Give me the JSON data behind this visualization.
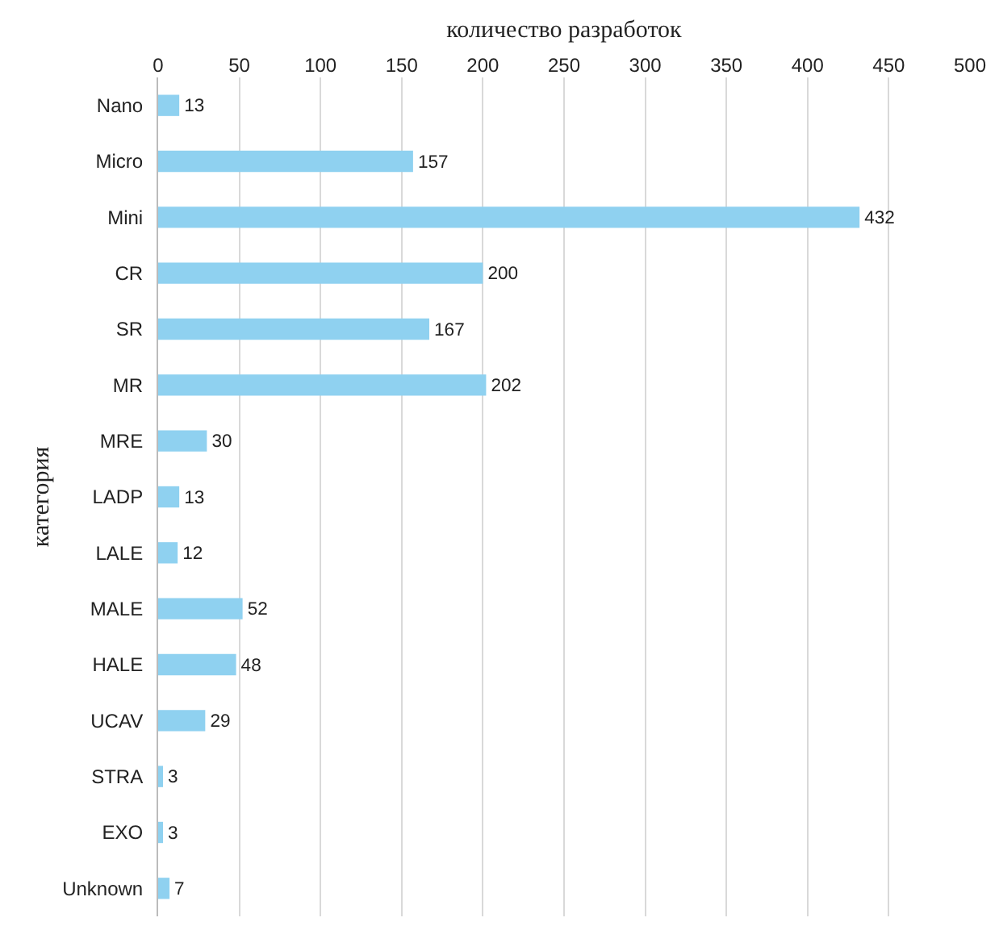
{
  "chart_data": {
    "type": "bar",
    "orientation": "horizontal",
    "xlabel": "количество разработок",
    "ylabel": "категория",
    "categories": [
      "Nano",
      "Micro",
      "Mini",
      "CR",
      "SR",
      "MR",
      "MRE",
      "LADP",
      "LALE",
      "MALE",
      "HALE",
      "UCAV",
      "STRA",
      "EXO",
      "Unknown"
    ],
    "values": [
      13,
      157,
      432,
      200,
      167,
      202,
      30,
      13,
      12,
      52,
      48,
      29,
      3,
      3,
      7
    ],
    "color": "#8fd1f0",
    "xlim": [
      0,
      500
    ],
    "xticks": [
      0,
      50,
      100,
      150,
      200,
      250,
      300,
      350,
      400,
      450,
      500
    ],
    "grid": "x",
    "data_labels": true
  }
}
